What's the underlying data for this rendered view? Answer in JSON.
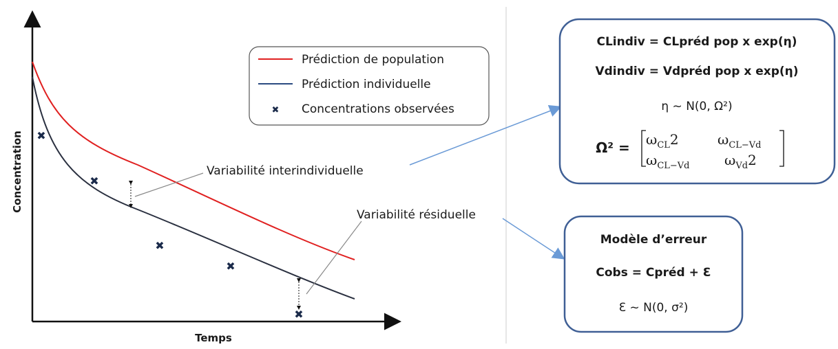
{
  "axes": {
    "y_label": "Concentration",
    "x_label": "Temps"
  },
  "legend": [
    "Prédiction de population",
    "Prédiction individuelle",
    "Concentrations observées"
  ],
  "annotations": {
    "inter": "Variabilité interindividuelle",
    "residual": "Variabilité résiduelle"
  },
  "model_box": {
    "lines": [
      "CLindiv = CLpréd pop x exp(η)",
      "Vdindiv = Vdpréd pop x exp(η)",
      "η ~ N(0, Ω²)"
    ],
    "matrix_label": "Ω² =",
    "matrix": [
      [
        {
          "symbol": "ω",
          "sub": "CL",
          "tail": "2"
        },
        {
          "symbol": "ω",
          "sub": "CL−Vd",
          "tail": ""
        }
      ],
      [
        {
          "symbol": "ω",
          "sub": "CL−Vd",
          "tail": ""
        },
        {
          "symbol": "ω",
          "sub": "Vd",
          "tail": "2"
        }
      ]
    ]
  },
  "error_box": {
    "lines": [
      "Modèle d’erreur",
      "Cobs = Cpréd + Ɛ",
      "Ɛ ~ N(0, σ²)"
    ]
  }
}
